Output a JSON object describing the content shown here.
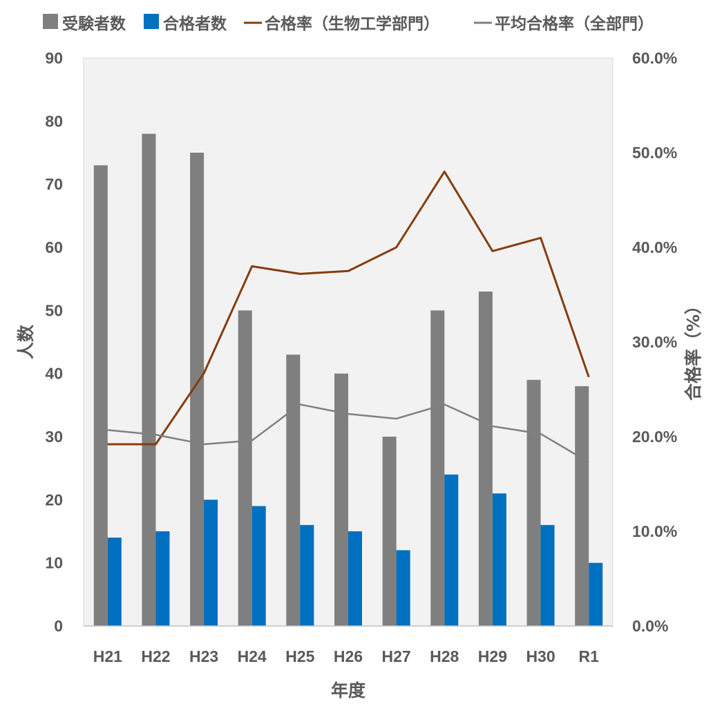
{
  "chart_data": {
    "type": "bar",
    "categories": [
      "H21",
      "H22",
      "H23",
      "H24",
      "H25",
      "H26",
      "H27",
      "H28",
      "H29",
      "H30",
      "R1"
    ],
    "series": [
      {
        "name": "受験者数",
        "kind": "bar",
        "axis": "left",
        "color": "#7f7f7f",
        "values": [
          73,
          78,
          75,
          50,
          43,
          40,
          30,
          50,
          53,
          39,
          38
        ]
      },
      {
        "name": "合格者数",
        "kind": "bar",
        "axis": "left",
        "color": "#0070c0",
        "values": [
          14,
          15,
          20,
          19,
          16,
          15,
          12,
          24,
          21,
          16,
          10
        ]
      },
      {
        "name": "合格率（生物工学部門）",
        "kind": "line",
        "axis": "right",
        "color": "#843c0c",
        "values": [
          19.2,
          19.2,
          26.7,
          38.0,
          37.2,
          37.5,
          40.0,
          48.0,
          39.6,
          41.0,
          26.3
        ]
      },
      {
        "name": "平均合格率（全部門）",
        "kind": "line",
        "axis": "right",
        "color": "#808080",
        "values": [
          20.7,
          20.2,
          19.2,
          19.6,
          23.4,
          22.4,
          21.9,
          23.4,
          21.1,
          20.3,
          17.3
        ]
      }
    ],
    "xlabel": "年度",
    "ylabel": "人数",
    "ylabel_right": "合格率（%）",
    "ylim": [
      0,
      90
    ],
    "yticks": [
      "0",
      "10",
      "20",
      "30",
      "40",
      "50",
      "60",
      "70",
      "80",
      "90"
    ],
    "ylim_right": [
      0,
      60
    ],
    "yticks_right": [
      "0.0%",
      "10.0%",
      "20.0%",
      "30.0%",
      "40.0%",
      "50.0%",
      "60.0%"
    ],
    "grid": false,
    "legend": "top",
    "plot_background": "#f2f2f2"
  }
}
